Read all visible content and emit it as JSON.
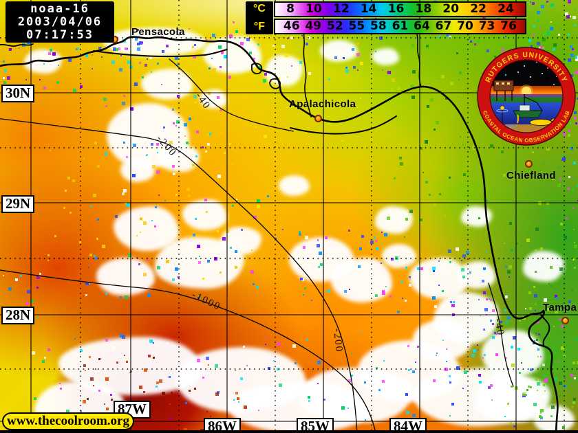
{
  "header": {
    "satellite": "noaa-16",
    "date": "2003/04/06",
    "time": "07:17:53"
  },
  "colorbar": {
    "celsius_label": "°C",
    "fahrenheit_label": "°F",
    "celsius_ticks": [
      "8",
      "10",
      "12",
      "14",
      "16",
      "18",
      "20",
      "22",
      "24"
    ],
    "fahrenheit_ticks": [
      "46",
      "49",
      "52",
      "55",
      "58",
      "61",
      "64",
      "67",
      "70",
      "73",
      "76"
    ]
  },
  "map": {
    "latitude_labels": [
      "30N",
      "29N",
      "28N"
    ],
    "longitude_labels": [
      "87W",
      "86W",
      "85W",
      "84W"
    ],
    "cities": [
      {
        "name": "Pensacola"
      },
      {
        "name": "Apalachicola"
      },
      {
        "name": "Chiefland"
      },
      {
        "name": "Tampa"
      }
    ],
    "contour_labels": [
      "-40",
      "-200",
      "-1000",
      "-200",
      "-40"
    ]
  },
  "logo": {
    "top_text": "RUTGERS UNIVERSITY",
    "bottom_text": "COASTAL OCEAN OBSERVATION LAB"
  },
  "footer": {
    "url": "www.thecoolroom.org"
  },
  "colors": {
    "scale_gradient": [
      "#ffffff",
      "#f2a0ff",
      "#d400dd",
      "#7a00ee",
      "#2a2aff",
      "#0080ff",
      "#00ccee",
      "#00cc77",
      "#1fbb11",
      "#8ecc00",
      "#eeee00",
      "#ffc400",
      "#ff7300",
      "#ee2500",
      "#9c0500"
    ],
    "marker_orange": "#ff9100",
    "label_yellow": "#ffe800"
  }
}
